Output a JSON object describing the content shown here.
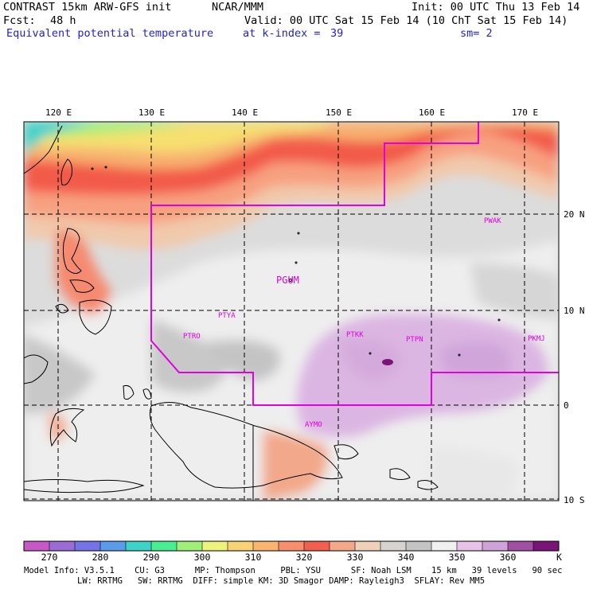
{
  "header": {
    "model_title": "CONTRAST 15km ARW-GFS init",
    "org": "NCAR/MMM",
    "init": "Init: 00 UTC Thu 13 Feb 14",
    "fcst_label": "Fcst:",
    "fcst_value": "48 h",
    "valid": "Valid: 00 UTC Sat 15 Feb 14 (10 ChT Sat 15 Feb 14)",
    "field": "Equivalent potential temperature",
    "level": "at k-index =",
    "level_value": "39",
    "smooth": "sm= 2"
  },
  "map": {
    "lon_labels": [
      "120 E",
      "130 E",
      "140 E",
      "150 E",
      "160 E",
      "170 E"
    ],
    "lat_labels": [
      "20 N",
      "10 N",
      "0",
      "10 S"
    ],
    "stations": [
      "PGUM",
      "PTYA",
      "PTRO",
      "PTKK",
      "PTPN",
      "PKMJ",
      "PWAK",
      "AYMO"
    ]
  },
  "colorbar": {
    "colors": [
      "#c858c8",
      "#9b6cd6",
      "#7474e8",
      "#5a9bea",
      "#3fd2c8",
      "#48ee90",
      "#9ef07a",
      "#ecf27a",
      "#f8d274",
      "#f9b46e",
      "#f88f6c",
      "#f35f4e",
      "#f4a88a",
      "#efd0b8",
      "#d7d3d0",
      "#c4c4c4",
      "#f0f0f0",
      "#e6c2e6",
      "#d0a2da",
      "#a14ea4",
      "#7a1478"
    ],
    "labels": [
      "270",
      "280",
      "290",
      "300",
      "310",
      "320",
      "330",
      "340",
      "350",
      "360"
    ],
    "unit": "K"
  },
  "footer": {
    "line1": "Model Info: V3.5.1    CU: G3      MP: Thompson     PBL: YSU      SF: Noah LSM    15 km   39 levels   90 sec",
    "line2": "LW: RRTMG   SW: RRTMG  DIFF: simple KM: 3D Smagor DAMP: Rayleigh3  SFLAY: Rev MM5"
  }
}
